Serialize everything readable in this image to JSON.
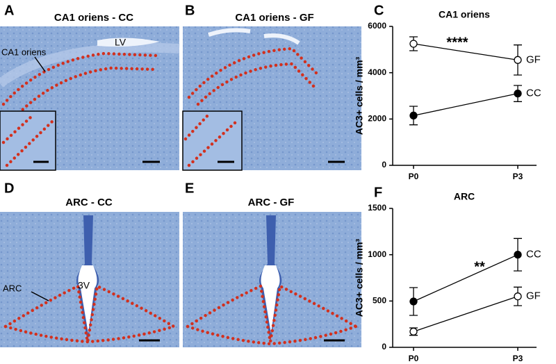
{
  "panels": [
    {
      "letter": "A",
      "title": "CA1 oriens - CC",
      "labels": [
        "LV",
        "CA1 oriens"
      ]
    },
    {
      "letter": "B",
      "title": "CA1 oriens - GF"
    },
    {
      "letter": "D",
      "title": "ARC - CC",
      "labels": [
        "ARC",
        "3V"
      ]
    },
    {
      "letter": "E",
      "title": "ARC - GF"
    }
  ],
  "chart_data": [
    {
      "type": "line",
      "panel_label": "C",
      "title": "CA1 oriens",
      "y_label": "AC3+ cells / mm³",
      "categories": [
        "P0",
        "P3"
      ],
      "series": [
        {
          "name": "GF",
          "color": "#000000",
          "marker_fill": "#ffffff",
          "values": [
            5250,
            4550
          ],
          "errors": [
            300,
            650
          ]
        },
        {
          "name": "CC",
          "color": "#000000",
          "marker_fill": "#000000",
          "values": [
            2150,
            3100
          ],
          "errors": [
            400,
            350
          ]
        }
      ],
      "ylim": [
        0,
        6000
      ],
      "yticks": [
        0,
        2000,
        4000,
        6000
      ],
      "annotation": "****"
    },
    {
      "type": "line",
      "panel_label": "F",
      "title": "ARC",
      "y_label": "AC3+ cells / mm³",
      "categories": [
        "P0",
        "P3"
      ],
      "series": [
        {
          "name": "CC",
          "color": "#000000",
          "marker_fill": "#000000",
          "values": [
            495,
            1000
          ],
          "errors": [
            150,
            175
          ]
        },
        {
          "name": "GF",
          "color": "#000000",
          "marker_fill": "#ffffff",
          "values": [
            170,
            550
          ],
          "errors": [
            40,
            100
          ]
        }
      ],
      "ylim": [
        0,
        1500
      ],
      "yticks": [
        0,
        500,
        1000,
        1500
      ],
      "annotation": "**"
    }
  ]
}
